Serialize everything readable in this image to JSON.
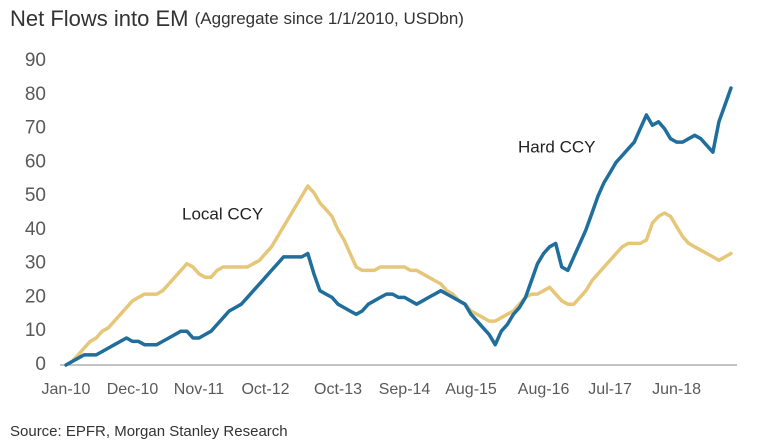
{
  "chart_data": {
    "type": "line",
    "title": "Net Flows into EM",
    "subtitle": "(Aggregate since 1/1/2010, USDbn)",
    "source": "Source: EPFR, Morgan Stanley Research",
    "categories": [
      "Jan-10",
      null,
      null,
      null,
      null,
      null,
      null,
      null,
      null,
      null,
      null,
      "Dec-10",
      null,
      null,
      null,
      null,
      null,
      null,
      null,
      null,
      null,
      null,
      "Nov-11",
      null,
      null,
      null,
      null,
      null,
      null,
      null,
      null,
      null,
      null,
      "Oct-12",
      null,
      null,
      null,
      null,
      null,
      null,
      null,
      null,
      null,
      null,
      null,
      "Oct-13",
      null,
      null,
      null,
      null,
      null,
      null,
      null,
      null,
      null,
      null,
      "Sep-14",
      null,
      null,
      null,
      null,
      null,
      null,
      null,
      null,
      null,
      null,
      "Aug-15",
      null,
      null,
      null,
      null,
      null,
      null,
      null,
      null,
      null,
      null,
      null,
      "Aug-16",
      null,
      null,
      null,
      null,
      null,
      null,
      null,
      null,
      null,
      null,
      "Jul-17",
      null,
      null,
      null,
      null,
      null,
      null,
      null,
      null,
      null,
      null,
      "Jun-18",
      null,
      null,
      null,
      null,
      null,
      null,
      null,
      null,
      null
    ],
    "series": [
      {
        "name": "Hard CCY",
        "color": "#1f6e9c",
        "values": [
          0,
          1,
          2,
          3,
          3,
          3,
          4,
          5,
          6,
          7,
          8,
          7,
          7,
          6,
          6,
          6,
          7,
          8,
          9,
          10,
          10,
          8,
          8,
          9,
          10,
          12,
          14,
          16,
          17,
          18,
          20,
          22,
          24,
          26,
          28,
          30,
          32,
          32,
          32,
          32,
          33,
          27,
          22,
          21,
          20,
          18,
          17,
          16,
          15,
          16,
          18,
          19,
          20,
          21,
          21,
          20,
          20,
          19,
          18,
          19,
          20,
          21,
          22,
          21,
          20,
          19,
          18,
          15,
          13,
          11,
          9,
          6,
          10,
          12,
          15,
          17,
          20,
          25,
          30,
          33,
          35,
          36,
          29,
          28,
          32,
          36,
          40,
          45,
          50,
          54,
          57,
          60,
          62,
          64,
          66,
          70,
          74,
          71,
          72,
          70,
          67,
          66,
          66,
          67,
          68,
          67,
          65,
          63,
          72,
          77,
          82
        ]
      },
      {
        "name": "Local CCY",
        "color": "#e6c77a",
        "values": [
          0,
          1,
          3,
          5,
          7,
          8,
          10,
          11,
          13,
          15,
          17,
          19,
          20,
          21,
          21,
          21,
          22,
          24,
          26,
          28,
          30,
          29,
          27,
          26,
          26,
          28,
          29,
          29,
          29,
          29,
          29,
          30,
          31,
          33,
          35,
          38,
          41,
          44,
          47,
          50,
          53,
          51,
          48,
          46,
          44,
          40,
          37,
          33,
          29,
          28,
          28,
          28,
          29,
          29,
          29,
          29,
          29,
          28,
          28,
          27,
          26,
          25,
          24,
          22,
          21,
          19,
          18,
          16,
          15,
          14,
          13,
          13,
          14,
          15,
          16,
          18,
          20,
          21,
          21,
          22,
          23,
          21,
          19,
          18,
          18,
          20,
          22,
          25,
          27,
          29,
          31,
          33,
          35,
          36,
          36,
          36,
          37,
          42,
          44,
          45,
          44,
          41,
          38,
          36,
          35,
          34,
          33,
          32,
          31,
          32,
          33
        ]
      }
    ],
    "ylim": [
      0,
      90
    ],
    "yticks": [
      0,
      10,
      20,
      30,
      40,
      50,
      60,
      70,
      80,
      90
    ],
    "grid": false
  }
}
